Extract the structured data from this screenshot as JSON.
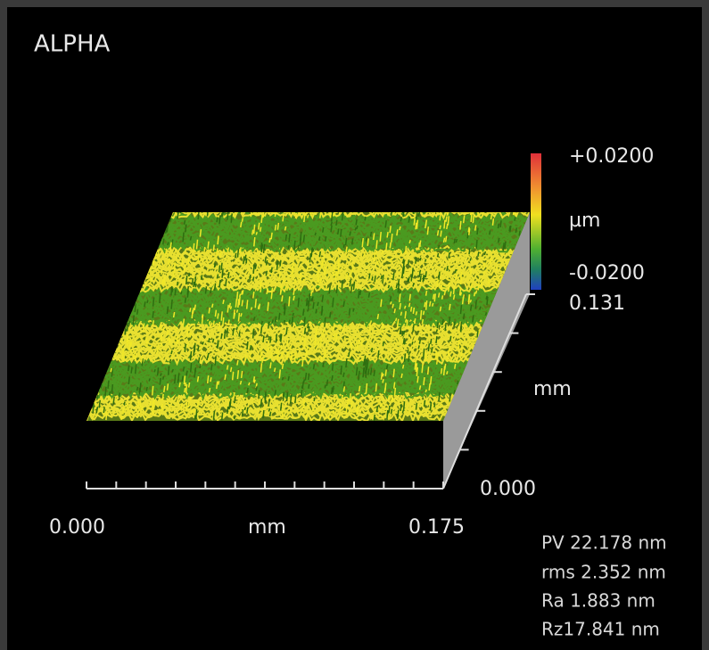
{
  "title": "ALPHA",
  "colorbar": {
    "max_label": "+0.0200",
    "unit": "µm",
    "min_label": "-0.0200"
  },
  "y_axis": {
    "max_label": "0.131",
    "unit": "mm",
    "min_label": "0.000"
  },
  "x_axis": {
    "min_label": "0.000",
    "unit": "mm",
    "max_label": "0.175"
  },
  "stats": [
    "PV 22.178 nm",
    "rms 2.352 nm",
    "Ra 1.883 nm",
    "Rz17.841 nm"
  ]
}
